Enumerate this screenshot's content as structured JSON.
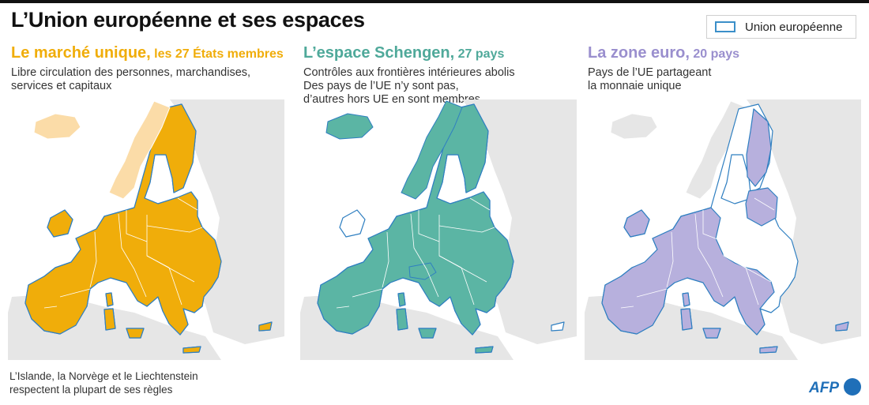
{
  "title": "L’Union européenne et ses espaces",
  "legend": {
    "label": "Union européenne",
    "border_color": "#3b8fc9"
  },
  "panels": [
    {
      "title_main": "Le marché unique,",
      "title_sub": "les 27 États membres",
      "title_color": "#f0ad0a",
      "description": [
        "Libre circulation des personnes, marchandises,",
        "services et capitaux"
      ],
      "fill_color": "#f0ad0a",
      "light_color": "#fbdca8",
      "light_regions": [
        "Islande",
        "Norvège"
      ]
    },
    {
      "title_main": "L’espace Schengen,",
      "title_sub": "27 pays",
      "title_color": "#4fa99a",
      "description": [
        "Contrôles aux frontières intérieures abolis",
        "Des pays de l’UE n’y sont pas,",
        "d’autres hors UE en sont membres"
      ],
      "fill_color": "#5bb5a4",
      "light_color": "#5bb5a4",
      "light_regions": [
        "Islande",
        "Norvège",
        "Suisse"
      ]
    },
    {
      "title_main": "La zone euro,",
      "title_sub": "20 pays",
      "title_color": "#9a8fce",
      "description": [
        "Pays de l’UE partageant",
        "la monnaie unique"
      ],
      "fill_color": "#b7b0dd",
      "light_color": "#b7b0dd",
      "light_regions": []
    }
  ],
  "colors": {
    "land": "#e6e6e6",
    "border": "#2f7fc1",
    "water": "#ffffff"
  },
  "footnote": [
    "L’Islande, la Norvège et le Liechtenstein",
    "respectent la plupart de ses règles"
  ],
  "logo": {
    "text": "AFP",
    "color": "#1f6fb8"
  }
}
